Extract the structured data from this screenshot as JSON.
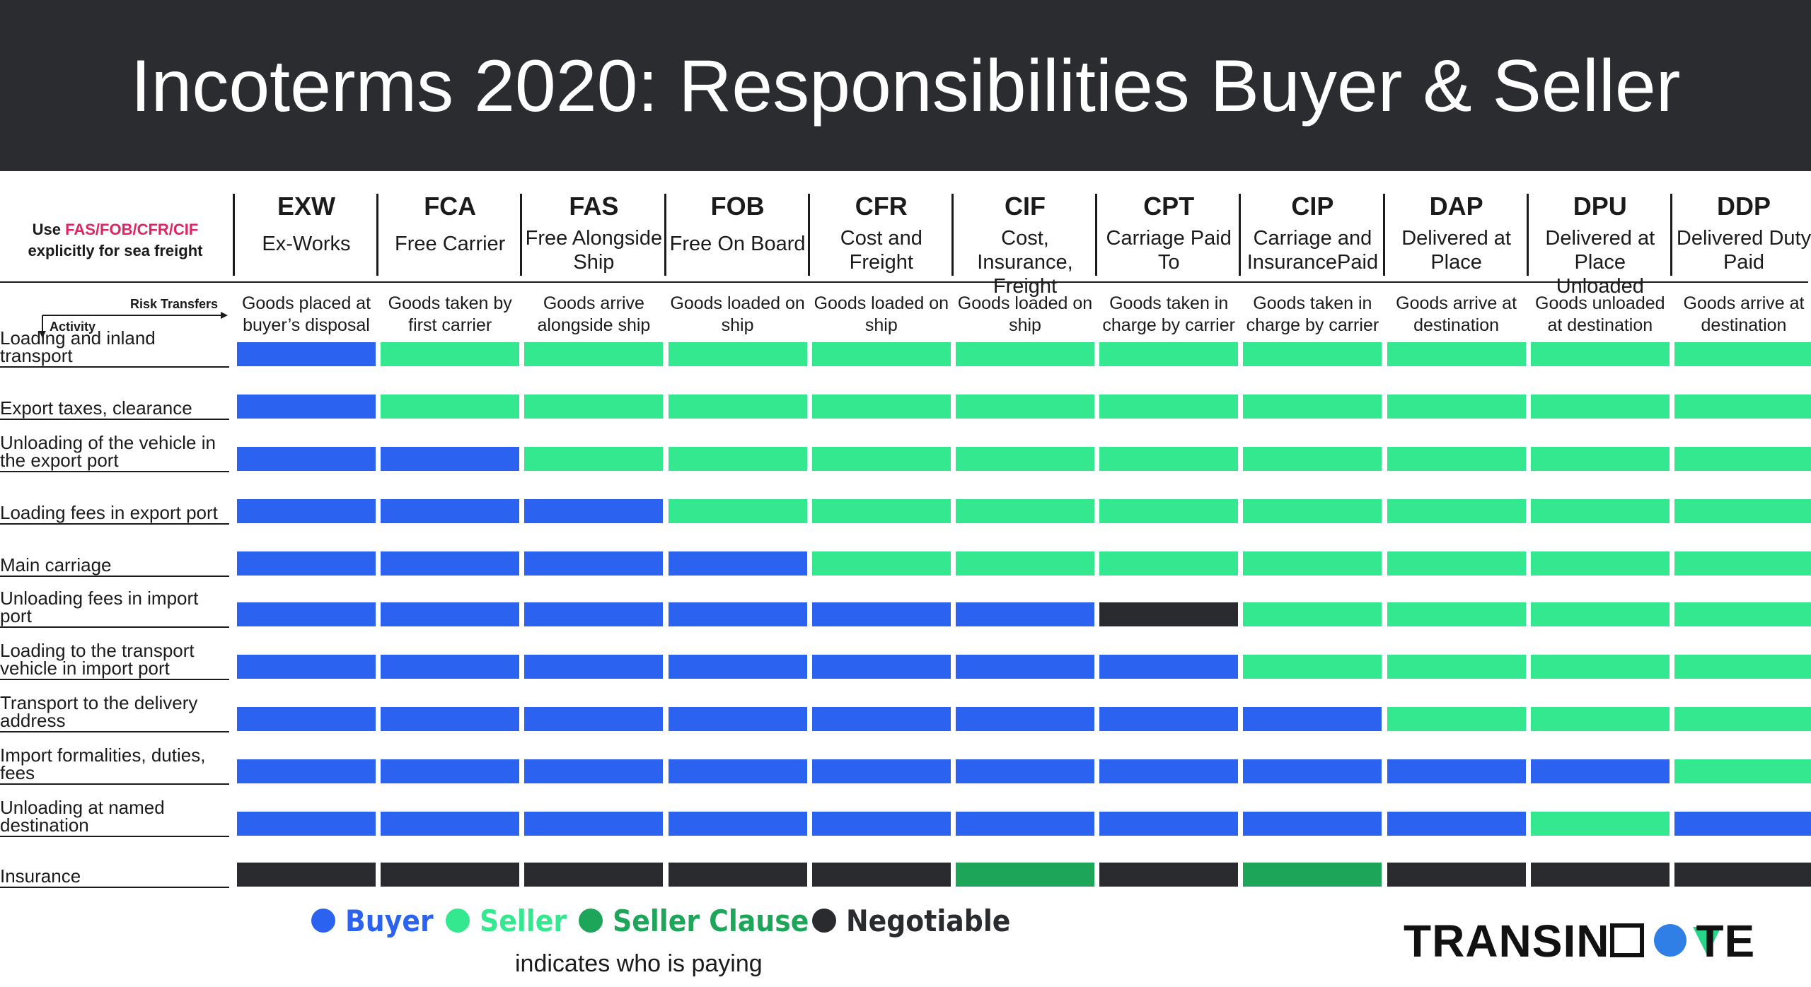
{
  "title": "Incoterms 2020: Responsibilities Buyer & Seller",
  "corner_note": {
    "prefix": "Use ",
    "highlight": "FAS/FOB/CFR/CIF",
    "suffix": "explicitly for sea freight"
  },
  "axis_labels": {
    "risk": "Risk Transfers",
    "activity": "Activity"
  },
  "colors": {
    "buyer": "#2b63f0",
    "seller": "#33e88e",
    "seller_clause": "#1da55a",
    "negotiable": "#2a2b2f"
  },
  "chart_data": {
    "type": "table",
    "columns": [
      {
        "code": "EXW",
        "name": "Ex-Works",
        "risk": "Goods placed at buyer’s disposal"
      },
      {
        "code": "FCA",
        "name": "Free Carrier",
        "risk": "Goods taken by first carrier"
      },
      {
        "code": "FAS",
        "name": "Free Alongside Ship",
        "risk": "Goods arrive alongside ship"
      },
      {
        "code": "FOB",
        "name": "Free On Board",
        "risk": "Goods loaded on ship"
      },
      {
        "code": "CFR",
        "name": "Cost and Freight",
        "risk": "Goods loaded on ship"
      },
      {
        "code": "CIF",
        "name": "Cost, Insurance, Freight",
        "risk": "Goods loaded on ship"
      },
      {
        "code": "CPT",
        "name": "Carriage Paid To",
        "risk": "Goods taken in charge by carrier"
      },
      {
        "code": "CIP",
        "name": "Carriage and InsurancePaid",
        "risk": "Goods taken in charge by carrier"
      },
      {
        "code": "DAP",
        "name": "Delivered at Place",
        "risk": "Goods arrive at destination"
      },
      {
        "code": "DPU",
        "name": "Delivered at Place Unloaded",
        "risk": "Goods unloaded at destination"
      },
      {
        "code": "DDP",
        "name": "Delivered Duty Paid",
        "risk": "Goods arrive at destination"
      }
    ],
    "rows": [
      {
        "activity": "Loading and inland transport",
        "values": [
          "B",
          "S",
          "S",
          "S",
          "S",
          "S",
          "S",
          "S",
          "S",
          "S",
          "S"
        ]
      },
      {
        "activity": "Export taxes, clearance",
        "values": [
          "B",
          "S",
          "S",
          "S",
          "S",
          "S",
          "S",
          "S",
          "S",
          "S",
          "S"
        ]
      },
      {
        "activity": "Unloading of the vehicle in the export port",
        "values": [
          "B",
          "B",
          "S",
          "S",
          "S",
          "S",
          "S",
          "S",
          "S",
          "S",
          "S"
        ]
      },
      {
        "activity": "Loading fees in export port",
        "values": [
          "B",
          "B",
          "B",
          "S",
          "S",
          "S",
          "S",
          "S",
          "S",
          "S",
          "S"
        ]
      },
      {
        "activity": "Main carriage",
        "values": [
          "B",
          "B",
          "B",
          "B",
          "S",
          "S",
          "S",
          "S",
          "S",
          "S",
          "S"
        ]
      },
      {
        "activity": "Unloading fees in import port",
        "values": [
          "B",
          "B",
          "B",
          "B",
          "B",
          "B",
          "N",
          "S",
          "S",
          "S",
          "S"
        ]
      },
      {
        "activity": "Loading to the transport vehicle in import port",
        "values": [
          "B",
          "B",
          "B",
          "B",
          "B",
          "B",
          "B",
          "S",
          "S",
          "S",
          "S"
        ]
      },
      {
        "activity": "Transport to the delivery address",
        "values": [
          "B",
          "B",
          "B",
          "B",
          "B",
          "B",
          "B",
          "B",
          "S",
          "S",
          "S"
        ]
      },
      {
        "activity": "Import formalities, duties, fees",
        "values": [
          "B",
          "B",
          "B",
          "B",
          "B",
          "B",
          "B",
          "B",
          "B",
          "B",
          "S"
        ]
      },
      {
        "activity": "Unloading at named destination",
        "values": [
          "B",
          "B",
          "B",
          "B",
          "B",
          "B",
          "B",
          "B",
          "B",
          "S",
          "B"
        ]
      },
      {
        "activity": "Insurance",
        "values": [
          "N",
          "N",
          "N",
          "N",
          "N",
          "C",
          "N",
          "C",
          "N",
          "N",
          "N"
        ]
      }
    ],
    "legend": [
      {
        "key": "B",
        "label": "Buyer",
        "color": "#2b63f0"
      },
      {
        "key": "S",
        "label": "Seller",
        "color": "#33e88e"
      },
      {
        "key": "C",
        "label": "Seller Clause",
        "color": "#1da55a"
      },
      {
        "key": "N",
        "label": "Negotiable",
        "color": "#2a2b2f"
      }
    ],
    "legend_note": "indicates who is paying"
  },
  "logo": "TRANSINNOVATE"
}
